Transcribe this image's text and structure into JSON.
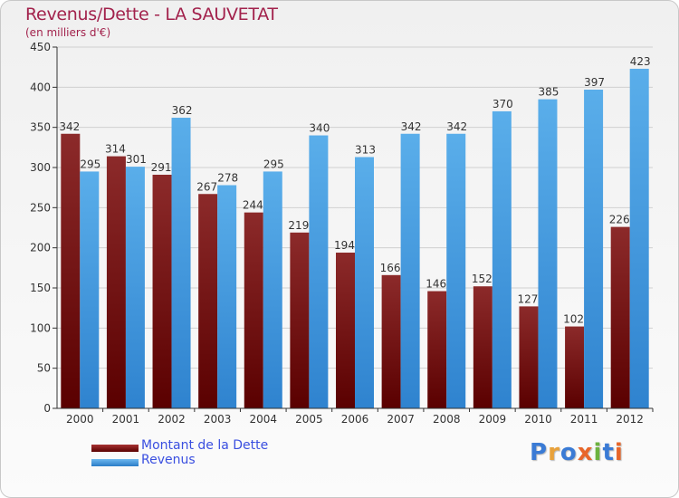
{
  "header": {
    "title": "Revenus/Dette - LA SAUVETAT",
    "subtitle": "(en milliers d'€)"
  },
  "chart_data": {
    "type": "bar",
    "categories": [
      "2000",
      "2001",
      "2002",
      "2003",
      "2004",
      "2005",
      "2006",
      "2007",
      "2008",
      "2009",
      "2010",
      "2011",
      "2012"
    ],
    "series": [
      {
        "name": "Montant de la Dette",
        "values": [
          342,
          314,
          291,
          267,
          244,
          219,
          194,
          166,
          146,
          152,
          127,
          102,
          226
        ],
        "color": "#7a0c0c"
      },
      {
        "name": "Revenus",
        "values": [
          295,
          301,
          362,
          278,
          295,
          340,
          313,
          342,
          342,
          370,
          385,
          397,
          423
        ],
        "color": "#3f9de3"
      }
    ],
    "ylim": [
      0,
      450
    ],
    "yticks": [
      0,
      50,
      100,
      150,
      200,
      250,
      300,
      350,
      400,
      450
    ],
    "grid": true,
    "legend_position": "bottom-left"
  },
  "brand": {
    "letters": [
      {
        "ch": "P",
        "color": "#3a7bd5"
      },
      {
        "ch": "r",
        "color": "#e8a13a"
      },
      {
        "ch": "o",
        "color": "#3a7bd5"
      },
      {
        "ch": "x",
        "color": "#e8662a"
      },
      {
        "ch": "i",
        "color": "#6db33f"
      },
      {
        "ch": "t",
        "color": "#3a7bd5"
      },
      {
        "ch": "i",
        "color": "#e8662a"
      }
    ]
  }
}
